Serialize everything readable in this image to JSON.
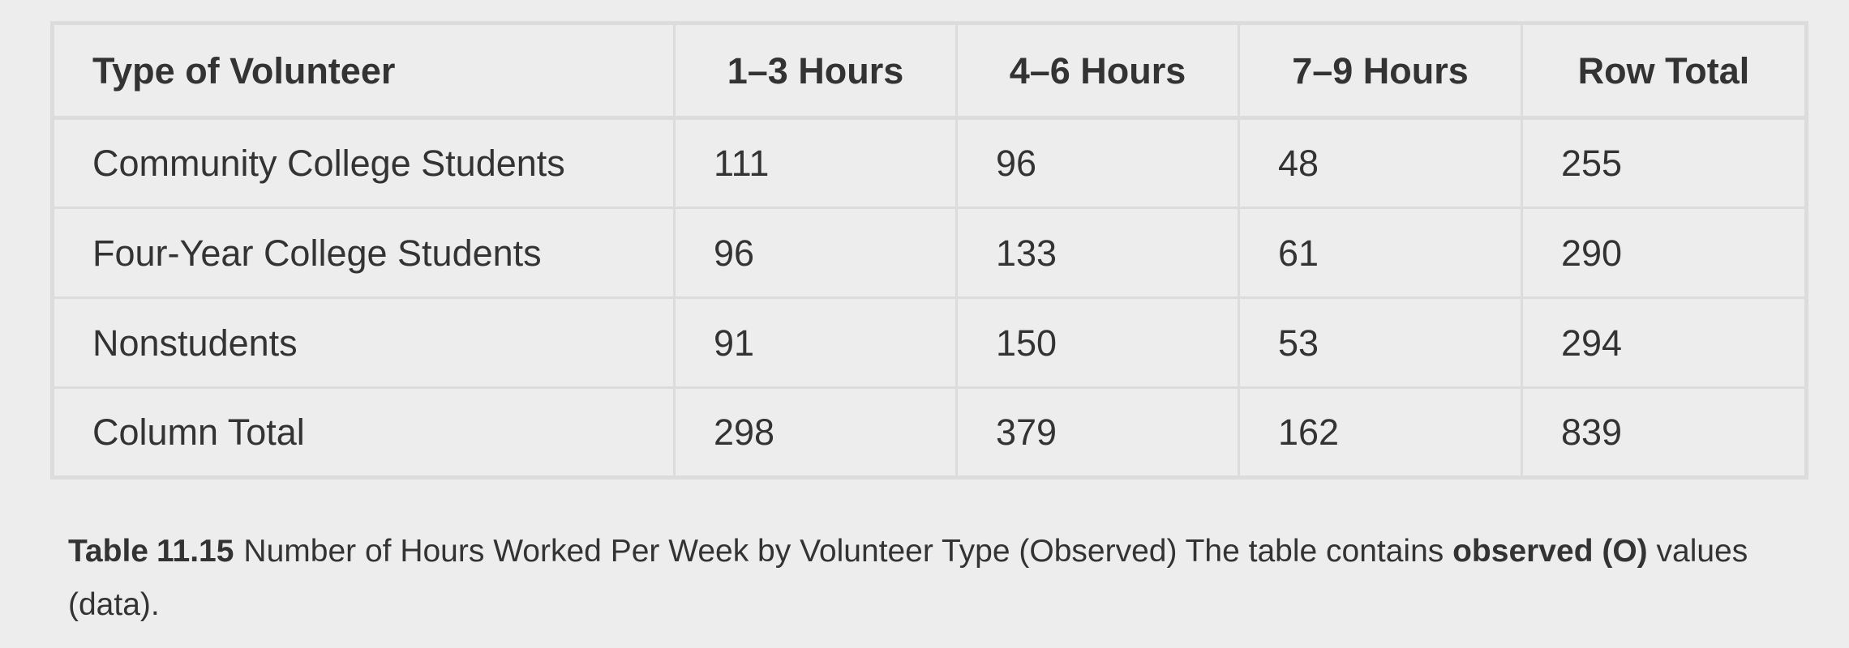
{
  "table": {
    "headers": [
      "Type of Volunteer",
      "1–3 Hours",
      "4–6 Hours",
      "7–9 Hours",
      "Row Total"
    ],
    "rows": [
      [
        "Community College Students",
        "111",
        "96",
        "48",
        "255"
      ],
      [
        "Four-Year College Students",
        "96",
        "133",
        "61",
        "290"
      ],
      [
        "Nonstudents",
        "91",
        "150",
        "53",
        "294"
      ],
      [
        "Column Total",
        "298",
        "379",
        "162",
        "839"
      ]
    ]
  },
  "caption": {
    "label": "Table",
    "number": "11.15",
    "text_before": "Number of Hours Worked Per Week by Volunteer Type (Observed) The table contains ",
    "bold": "observed (O)",
    "text_after": " values (data)."
  }
}
